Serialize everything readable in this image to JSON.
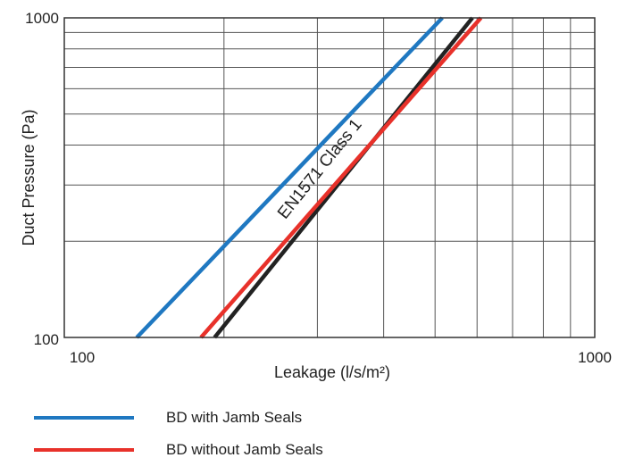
{
  "chart_data": {
    "type": "line",
    "xlabel": "Leakage (l/s/m²)",
    "ylabel": "Duct Pressure (Pa)",
    "x_scale": "log",
    "y_scale": "log",
    "xlim": [
      100,
      1000
    ],
    "ylim": [
      100,
      1000
    ],
    "xticks": [
      "100",
      "1000"
    ],
    "yticks": [
      "100",
      "1000"
    ],
    "grid": true,
    "legend_position": "bottom",
    "annotation": "EN1571 Class 1",
    "series": [
      {
        "name": "BD with Jamb Seals",
        "color": "#1f78c1",
        "x": [
          137,
          516
        ],
        "y": [
          100,
          1000
        ]
      },
      {
        "name": "BD without Jamb Seals",
        "color": "#e8312a",
        "x": [
          181,
          610
        ],
        "y": [
          100,
          1000
        ]
      },
      {
        "name": "",
        "color": "#222222",
        "x": [
          192,
          588
        ],
        "y": [
          100,
          1000
        ]
      }
    ]
  }
}
